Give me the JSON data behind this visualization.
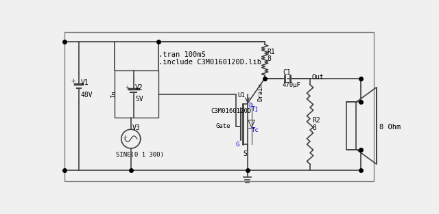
{
  "bg_color": "#f0f0f0",
  "border_color": "#808080",
  "wire_color": "#404040",
  "component_color": "#404040",
  "label_color": "#000000",
  "blue_color": "#0000cc",
  "annotations": {
    "tran": ".tran 100mS",
    "include": ".include C3M0160120D.lib",
    "v1_label": "V1",
    "v1_val": "48V",
    "v2_label": "V2",
    "v2_val": "5V",
    "v3_label": "V3",
    "v3_sine": "SINE(0 1 300)",
    "r1_label": "R1",
    "r1_val": "8",
    "r2_label": "R2",
    "r2_val": "8",
    "c1_label": "C1",
    "c1_val": "470μF",
    "mosfet_label": "C3M0160120D",
    "u1_label": "U1",
    "drain_label": "Drain",
    "gate_label": "Gate",
    "d_label": "D",
    "g_label": "G",
    "s_label": "S",
    "tj_label": "Tj",
    "tc_label": "Tc",
    "out_label": "Out",
    "ohm_label": "8 Ohm",
    "in_label": "In"
  }
}
